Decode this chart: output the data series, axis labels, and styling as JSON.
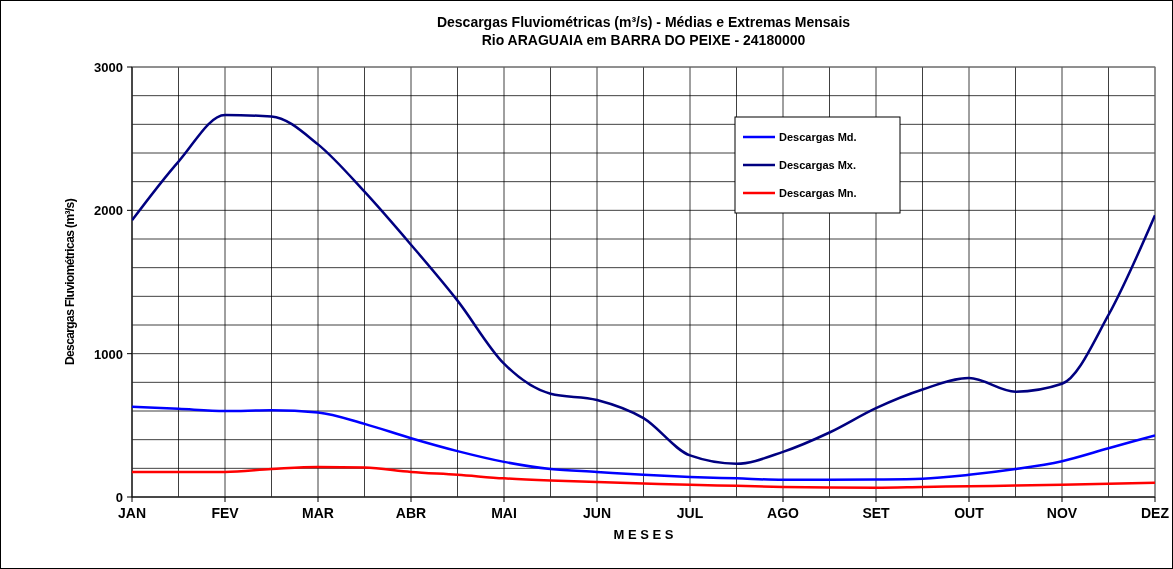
{
  "chart_data": {
    "type": "line",
    "title": "Descargas Fluviométricas (m³/s) - Médias e Extremas Mensais",
    "subtitle": "Rio ARAGUAIA em BARRA DO PEIXE  -  24180000",
    "xlabel": "M E S E S",
    "ylabel": "Descargas Fluviométricas (m³/s)",
    "categories": [
      "JAN",
      null,
      "FEV",
      null,
      "MAR",
      null,
      "ABR",
      null,
      "MAI",
      null,
      "JUN",
      null,
      "JUL",
      null,
      "AGO",
      null,
      "SET",
      null,
      "OUT",
      null,
      "NOV",
      null,
      "DEZ"
    ],
    "ylim": [
      0,
      3000
    ],
    "yticks": [
      0,
      {
        "value": 200,
        "label": null
      },
      {
        "value": 400,
        "label": null
      },
      {
        "value": 600,
        "label": null
      },
      {
        "value": 800,
        "label": null
      },
      1000,
      {
        "value": 1200,
        "label": null
      },
      {
        "value": 1400,
        "label": null
      },
      {
        "value": 1600,
        "label": null
      },
      {
        "value": 1800,
        "label": null
      },
      2000,
      {
        "value": 2200,
        "label": null
      },
      {
        "value": 2400,
        "label": null
      },
      {
        "value": 2600,
        "label": null
      },
      {
        "value": 2800,
        "label": null
      },
      3000
    ],
    "grid": true,
    "legend": "top right",
    "marker": "none",
    "line_style": "solid",
    "series": [
      {
        "name": "Descargas Md.",
        "color": "#0000ff",
        "values": [
          630,
          615,
          600,
          605,
          590,
          510,
          410,
          320,
          245,
          195,
          175,
          155,
          140,
          130,
          120,
          120,
          122,
          128,
          155,
          195,
          250,
          340,
          430
        ]
      },
      {
        "name": "Descargas Mx.",
        "color": "#000080",
        "values": [
          1930,
          2340,
          2665,
          2655,
          2460,
          2130,
          1760,
          1370,
          930,
          720,
          677,
          550,
          290,
          232,
          315,
          450,
          620,
          750,
          830,
          735,
          790,
          1270,
          1965
        ]
      },
      {
        "name": "Descargas Mn.",
        "color": "#ff0000",
        "values": [
          175,
          175,
          175,
          195,
          210,
          205,
          175,
          155,
          130,
          115,
          105,
          95,
          85,
          78,
          70,
          66,
          65,
          70,
          75,
          80,
          85,
          92,
          100
        ]
      }
    ]
  }
}
